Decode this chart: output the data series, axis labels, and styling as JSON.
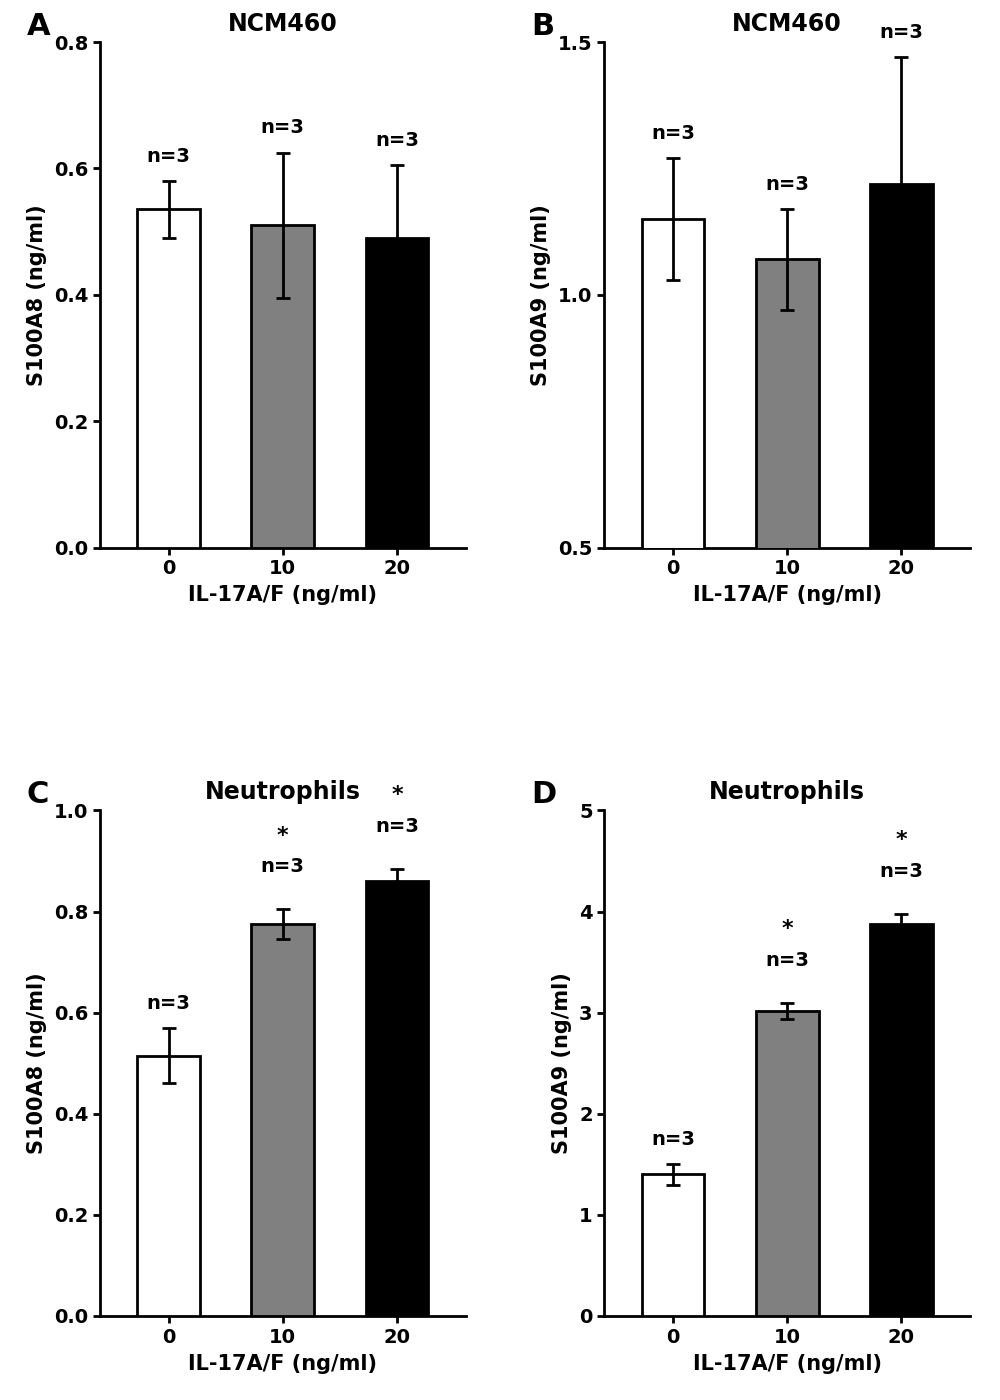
{
  "panels": [
    {
      "label": "A",
      "title": "NCM460",
      "ylabel": "S100A8 (ng/ml)",
      "xlabel": "IL-17A/F (ng/ml)",
      "xticks": [
        "0",
        "10",
        "20"
      ],
      "bar_values": [
        0.535,
        0.51,
        0.49
      ],
      "bar_errors": [
        0.045,
        0.115,
        0.115
      ],
      "bar_colors": [
        "white",
        "#808080",
        "black"
      ],
      "bar_edgecolors": [
        "black",
        "black",
        "black"
      ],
      "ylim": [
        0.0,
        0.8
      ],
      "yticks": [
        0.0,
        0.2,
        0.4,
        0.6,
        0.8
      ],
      "ytick_labels": [
        "0.0",
        "0.2",
        "0.4",
        "0.6",
        "0.8"
      ],
      "n_labels": [
        "n=3",
        "n=3",
        "n=3"
      ],
      "significance": [
        false,
        false,
        false
      ]
    },
    {
      "label": "B",
      "title": "NCM460",
      "ylabel": "S100A9 (ng/ml)",
      "xlabel": "IL-17A/F (ng/ml)",
      "xticks": [
        "0",
        "10",
        "20"
      ],
      "bar_values": [
        1.15,
        1.07,
        1.22
      ],
      "bar_errors": [
        0.12,
        0.1,
        0.25
      ],
      "bar_colors": [
        "white",
        "#808080",
        "black"
      ],
      "bar_edgecolors": [
        "black",
        "black",
        "black"
      ],
      "ylim": [
        0.5,
        1.5
      ],
      "yticks": [
        0.5,
        1.0,
        1.5
      ],
      "ytick_labels": [
        "0.5",
        "1.0",
        "1.5"
      ],
      "n_labels": [
        "n=3",
        "n=3",
        "n=3"
      ],
      "significance": [
        false,
        false,
        false
      ]
    },
    {
      "label": "C",
      "title": "Neutrophils",
      "ylabel": "S100A8 (ng/ml)",
      "xlabel": "IL-17A/F (ng/ml)",
      "xticks": [
        "0",
        "10",
        "20"
      ],
      "bar_values": [
        0.515,
        0.775,
        0.86
      ],
      "bar_errors": [
        0.055,
        0.03,
        0.025
      ],
      "bar_colors": [
        "white",
        "#808080",
        "black"
      ],
      "bar_edgecolors": [
        "black",
        "black",
        "black"
      ],
      "ylim": [
        0.0,
        1.0
      ],
      "yticks": [
        0.0,
        0.2,
        0.4,
        0.6,
        0.8,
        1.0
      ],
      "ytick_labels": [
        "0.0",
        "0.2",
        "0.4",
        "0.6",
        "0.8",
        "1.0"
      ],
      "n_labels": [
        "n=3",
        "n=3",
        "n=3"
      ],
      "significance": [
        false,
        true,
        true
      ]
    },
    {
      "label": "D",
      "title": "Neutrophils",
      "ylabel": "S100A9 (ng/ml)",
      "xlabel": "IL-17A/F (ng/ml)",
      "xticks": [
        "0",
        "10",
        "20"
      ],
      "bar_values": [
        1.4,
        3.02,
        3.88
      ],
      "bar_errors": [
        0.1,
        0.08,
        0.1
      ],
      "bar_colors": [
        "white",
        "#808080",
        "black"
      ],
      "bar_edgecolors": [
        "black",
        "black",
        "black"
      ],
      "ylim": [
        0,
        5
      ],
      "yticks": [
        0,
        1,
        2,
        3,
        4,
        5
      ],
      "ytick_labels": [
        "0",
        "1",
        "2",
        "3",
        "4",
        "5"
      ],
      "n_labels": [
        "n=3",
        "n=3",
        "n=3"
      ],
      "significance": [
        false,
        true,
        true
      ]
    }
  ],
  "fig_width": 10.0,
  "fig_height": 14.0,
  "bar_width": 0.55,
  "title_fontsize": 17,
  "label_fontsize": 15,
  "tick_fontsize": 14,
  "n_fontsize": 14,
  "star_fontsize": 16,
  "panel_label_fontsize": 22,
  "axis_linewidth": 2.0
}
